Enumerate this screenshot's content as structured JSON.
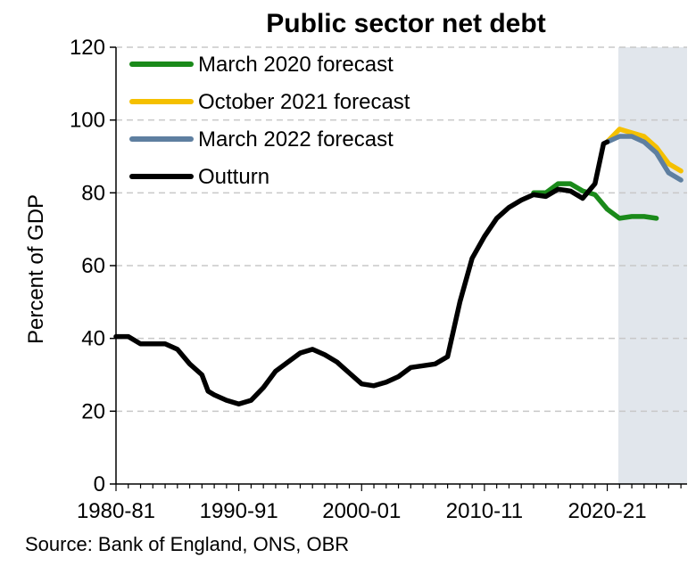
{
  "chart_data": {
    "type": "line",
    "title": "Public sector net debt",
    "ylabel": "Percent of GDP",
    "xlabel": "",
    "ylim": [
      0,
      120
    ],
    "xlim": [
      1980,
      2027
    ],
    "yticks": [
      0,
      20,
      40,
      60,
      80,
      100,
      120
    ],
    "xticks": [
      {
        "value": 1980,
        "label": "1980-81"
      },
      {
        "value": 1990,
        "label": "1990-91"
      },
      {
        "value": 2000,
        "label": "2000-01"
      },
      {
        "value": 2010,
        "label": "2010-11"
      },
      {
        "value": 2020,
        "label": "2020-21"
      }
    ],
    "grid": "horizontal dashed",
    "legend": "top-left",
    "forecast_shading": {
      "start": 2020.9,
      "end": 2027,
      "color": "#e1e6ec"
    },
    "series": [
      {
        "name": "March 2020 forecast",
        "color": "#1a8a1a",
        "points": [
          [
            2014,
            80
          ],
          [
            2015,
            80
          ],
          [
            2016,
            82.5
          ],
          [
            2017,
            82.5
          ],
          [
            2018,
            80.5
          ],
          [
            2019,
            79.5
          ],
          [
            2020,
            75.5
          ],
          [
            2021,
            73
          ],
          [
            2022,
            73.5
          ],
          [
            2023,
            73.5
          ],
          [
            2024,
            73
          ]
        ]
      },
      {
        "name": "October 2021 forecast",
        "color": "#f5c000",
        "points": [
          [
            2020,
            94
          ],
          [
            2021,
            97.5
          ],
          [
            2022,
            96.5
          ],
          [
            2023,
            95.5
          ],
          [
            2024,
            92.5
          ],
          [
            2025,
            88
          ],
          [
            2026,
            86
          ]
        ]
      },
      {
        "name": "March 2022 forecast",
        "color": "#5e7fa0",
        "points": [
          [
            2020,
            94
          ],
          [
            2021,
            95.5
          ],
          [
            2022,
            95.5
          ],
          [
            2023,
            94
          ],
          [
            2024,
            91
          ],
          [
            2025,
            85.5
          ],
          [
            2026,
            83.5
          ]
        ]
      },
      {
        "name": "Outturn",
        "color": "#000000",
        "points": [
          [
            1980,
            40.5
          ],
          [
            1981,
            40.5
          ],
          [
            1982,
            38.5
          ],
          [
            1983,
            38.5
          ],
          [
            1984,
            38.5
          ],
          [
            1985,
            37
          ],
          [
            1986,
            33
          ],
          [
            1987,
            30
          ],
          [
            1987.5,
            25.5
          ],
          [
            1988,
            24.5
          ],
          [
            1989,
            23
          ],
          [
            1990,
            22
          ],
          [
            1991,
            23
          ],
          [
            1992,
            26.5
          ],
          [
            1993,
            31
          ],
          [
            1994,
            33.5
          ],
          [
            1995,
            36
          ],
          [
            1996,
            37
          ],
          [
            1997,
            35.5
          ],
          [
            1998,
            33.5
          ],
          [
            1999,
            30.5
          ],
          [
            2000,
            27.5
          ],
          [
            2001,
            27
          ],
          [
            2002,
            28
          ],
          [
            2003,
            29.5
          ],
          [
            2004,
            32
          ],
          [
            2005,
            32.5
          ],
          [
            2006,
            33
          ],
          [
            2007,
            35
          ],
          [
            2008,
            50
          ],
          [
            2009,
            62
          ],
          [
            2010,
            68
          ],
          [
            2011,
            73
          ],
          [
            2012,
            76
          ],
          [
            2013,
            78
          ],
          [
            2014,
            79.5
          ],
          [
            2015,
            79
          ],
          [
            2016,
            81
          ],
          [
            2017,
            80.5
          ],
          [
            2018,
            78.5
          ],
          [
            2019,
            82.5
          ],
          [
            2019.7,
            93.5
          ],
          [
            2020,
            94
          ]
        ]
      }
    ],
    "source": "Source: Bank of England, ONS, OBR"
  }
}
